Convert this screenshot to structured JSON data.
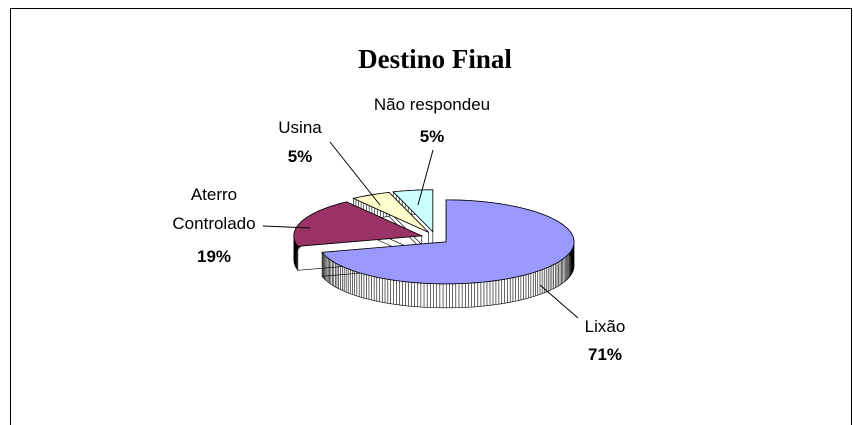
{
  "chart_data": {
    "type": "pie3d",
    "title": "Destino Final",
    "categories": [
      "Lixão",
      "Aterro Controlado",
      "Usina",
      "Não respondeu"
    ],
    "values": [
      71,
      19,
      5,
      5
    ],
    "value_labels": [
      "71%",
      "19%",
      "5%",
      "5%"
    ],
    "colors": [
      "#9999ff",
      "#993366",
      "#ffffcc",
      "#ccffff"
    ],
    "side_colors": [
      "#4d4d99",
      "#4d1a33",
      "#80806a",
      "#668080"
    ]
  }
}
